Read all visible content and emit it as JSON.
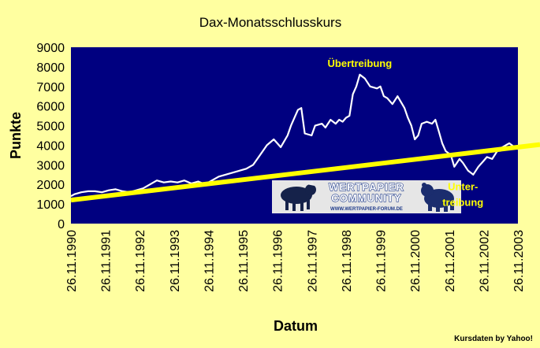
{
  "chart_data": {
    "type": "line",
    "title": "Dax-Monatsschlusskurs",
    "xlabel": "Datum",
    "ylabel": "Punkte",
    "ylim": [
      0,
      9000
    ],
    "yticks": [
      0,
      1000,
      2000,
      3000,
      4000,
      5000,
      6000,
      7000,
      8000,
      9000
    ],
    "xlim": [
      "1990-11-26",
      "2003-11-26"
    ],
    "xtick_labels": [
      "26.11.1990",
      "26.11.1991",
      "26.11.1992",
      "26.11.1993",
      "26.11.1994",
      "26.11.1995",
      "26.11.1996",
      "26.11.1997",
      "26.11.1998",
      "26.11.1999",
      "26.11.2000",
      "26.11.2001",
      "26.11.2002",
      "26.11.2003"
    ],
    "grid": false,
    "colors": {
      "plot_background": "#000080",
      "series_line": "#FFFFFF",
      "trend_line": "#FFFF00",
      "annotation_text": "#FFFF00",
      "page_background": "#FFFFA0"
    },
    "series": [
      {
        "x": [
          1990.9,
          1991.0,
          1991.2,
          1991.4,
          1991.6,
          1991.8,
          1992.0,
          1992.2,
          1992.4,
          1992.6,
          1992.8,
          1993.0,
          1993.2,
          1993.4,
          1993.6,
          1993.8,
          1994.0,
          1994.2,
          1994.4,
          1994.6,
          1994.8,
          1995.0,
          1995.2,
          1995.4,
          1995.6,
          1995.8,
          1996.0,
          1996.2,
          1996.4,
          1996.6,
          1996.8,
          1997.0,
          1997.2,
          1997.3,
          1997.4,
          1997.5,
          1997.6,
          1997.7,
          1997.9,
          1998.0,
          1998.2,
          1998.3,
          1998.45,
          1998.6,
          1998.7,
          1998.8,
          1998.9,
          1999.0,
          1999.1,
          1999.2,
          1999.3,
          1999.45,
          1999.6,
          1999.8,
          1999.9,
          2000.0,
          2000.1,
          2000.25,
          2000.4,
          2000.5,
          2000.6,
          2000.7,
          2000.8,
          2000.9,
          2001.0,
          2001.1,
          2001.25,
          2001.4,
          2001.5,
          2001.6,
          2001.7,
          2001.8,
          2001.95,
          2002.05,
          2002.2,
          2002.3,
          2002.45,
          2002.6,
          2002.75,
          2002.9,
          2003.0,
          2003.15,
          2003.3,
          2003.45,
          2003.55,
          2003.65,
          2003.8,
          2003.9
        ],
        "y": [
          1400,
          1500,
          1600,
          1650,
          1650,
          1600,
          1700,
          1750,
          1650,
          1600,
          1700,
          1800,
          2000,
          2200,
          2100,
          2150,
          2100,
          2200,
          2050,
          2150,
          2000,
          2200,
          2400,
          2500,
          2600,
          2700,
          2800,
          3000,
          3500,
          4000,
          4300,
          3900,
          4500,
          5000,
          5400,
          5800,
          5900,
          4600,
          4500,
          5000,
          5100,
          4900,
          5300,
          5100,
          5300,
          5200,
          5400,
          5500,
          6600,
          7000,
          7600,
          7400,
          7000,
          6900,
          7000,
          6500,
          6400,
          6100,
          6500,
          6200,
          5900,
          5400,
          5000,
          4300,
          4500,
          5100,
          5200,
          5100,
          5300,
          4700,
          4100,
          3700,
          3500,
          2900,
          3300,
          3100,
          2700,
          2500,
          2900,
          3200,
          3400,
          3300,
          3700,
          3900,
          4000,
          4100,
          3900,
          3800
        ]
      }
    ],
    "trend_line": {
      "x": [
        1990.9,
        2003.9
      ],
      "y": [
        1200,
        3900
      ]
    },
    "annotations": [
      {
        "text": "Übertreibung",
        "x": 1999.3,
        "y": 8000
      },
      {
        "text": "Unter-",
        "x": 2002.3,
        "y": 1700
      },
      {
        "text": "treibung",
        "x": 2002.3,
        "y": 900
      }
    ]
  },
  "banner": {
    "line1": "WERTPAPIER",
    "line2": "COMMUNITY",
    "url": "WWW.WERTPAPIER-FORUM.DE",
    "colors": {
      "background": "#E6E6E6",
      "accent": "#1E3A8A"
    }
  },
  "credit": "Kursdaten by Yahoo!"
}
